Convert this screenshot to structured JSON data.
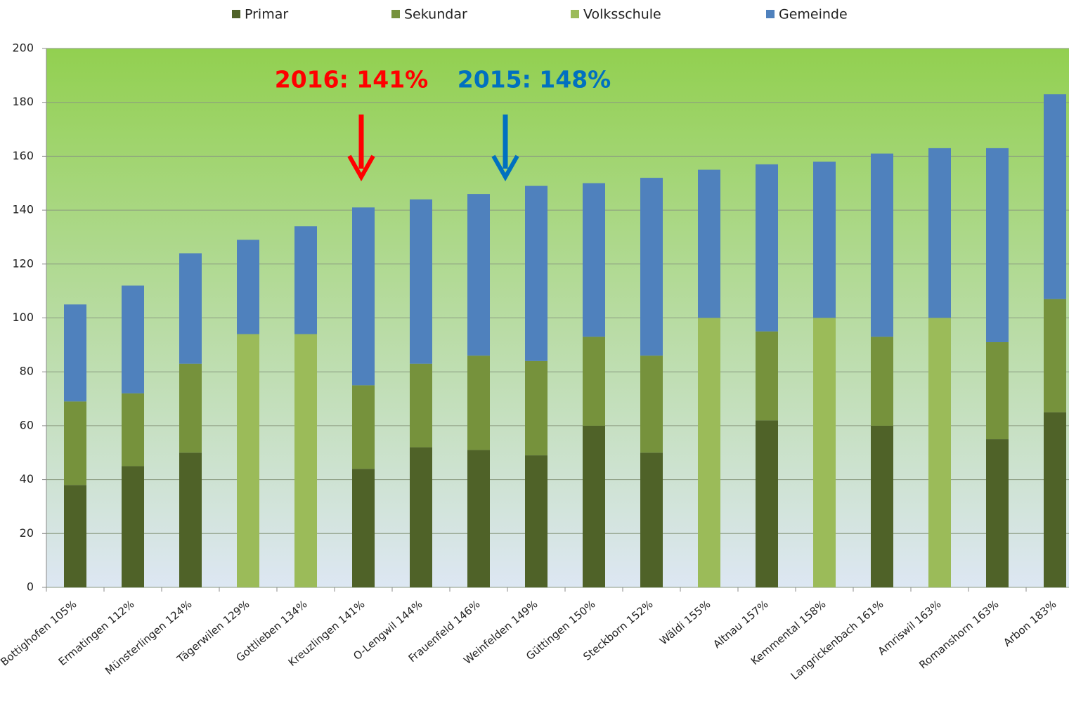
{
  "chart_data": {
    "type": "stacked_bar",
    "categories": [
      "Bottighofen 105%",
      "Ermatingen 112%",
      "Münsterlingen 124%",
      "Tägerwilen 129%",
      "Gottlieben 134%",
      "Kreuzlingen 141%",
      "O-Lengwil 144%",
      "Frauenfeld 146%",
      "Weinfelden 149%",
      "Güttingen 150%",
      "Steckborn 152%",
      "Wäldi 155%",
      "Altnau 157%",
      "Kemmental 158%",
      "Langrickenbach 161%",
      "Amriswil 163%",
      "Romanshorn 163%",
      "Arbon 183%"
    ],
    "series": [
      {
        "name": "Primar",
        "color": "#4f6228",
        "values": [
          38,
          45,
          50,
          null,
          null,
          44,
          52,
          51,
          49,
          60,
          50,
          null,
          62,
          null,
          60,
          null,
          55,
          65
        ]
      },
      {
        "name": "Sekundar",
        "color": "#76923c",
        "values": [
          31,
          27,
          33,
          null,
          null,
          31,
          31,
          35,
          35,
          33,
          36,
          null,
          33,
          null,
          33,
          null,
          36,
          42
        ]
      },
      {
        "name": "Volksschule",
        "color": "#9bbb59",
        "values": [
          null,
          null,
          null,
          94,
          94,
          null,
          null,
          null,
          null,
          null,
          null,
          100,
          null,
          100,
          null,
          100,
          null,
          null
        ]
      },
      {
        "name": "Gemeinde",
        "color": "#4f81bd",
        "values": [
          36,
          40,
          41,
          35,
          40,
          66,
          61,
          60,
          65,
          57,
          66,
          55,
          62,
          58,
          68,
          63,
          72,
          76
        ]
      }
    ],
    "ylim": [
      0,
      200
    ],
    "yticks": [
      0,
      20,
      40,
      60,
      80,
      100,
      120,
      140,
      160,
      180,
      200
    ],
    "grid": true,
    "legend": "top",
    "annotations": [
      {
        "text": "2016: 141%",
        "color": "#ff0000"
      },
      {
        "text": "2015: 148%",
        "color": "#0070c0"
      }
    ]
  }
}
